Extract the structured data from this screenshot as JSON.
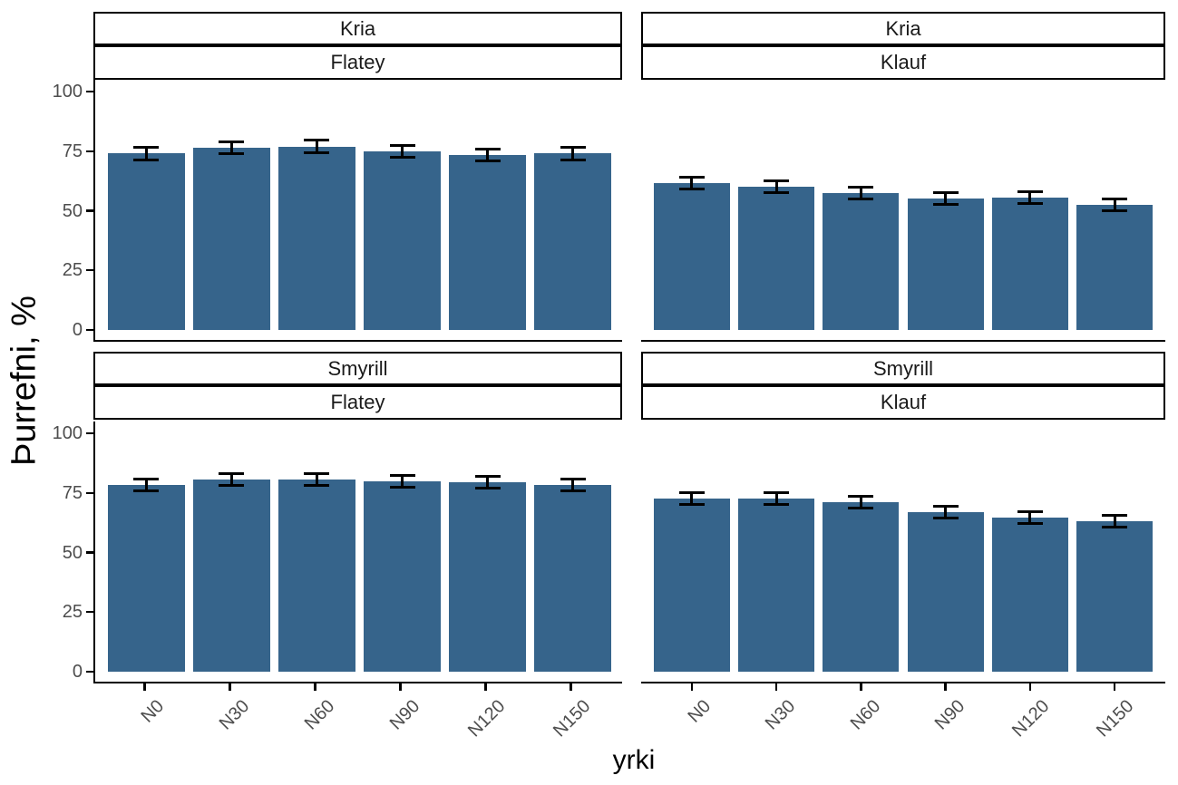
{
  "chart_data": {
    "type": "bar",
    "title": "",
    "xlabel": "yrki",
    "ylabel": "Þurrefni, %",
    "facet_rows": [
      "Kria",
      "Smyrill"
    ],
    "facet_cols": [
      "Flatey",
      "Klauf"
    ],
    "categories": [
      "N0",
      "N30",
      "N60",
      "N90",
      "N120",
      "N150"
    ],
    "ylim": [
      0,
      100
    ],
    "yticks": [
      0,
      25,
      50,
      75,
      100
    ],
    "bar_color": "#36648B",
    "error_bar_color": "#000000",
    "grid": false,
    "legend": "none",
    "panels": [
      {
        "row": "Kria",
        "col": "Flatey",
        "values": [
          74,
          76.5,
          77,
          75,
          73.5,
          74
        ],
        "errors": [
          2.5,
          2.5,
          2.5,
          2.5,
          2.5,
          2.5
        ]
      },
      {
        "row": "Kria",
        "col": "Klauf",
        "values": [
          61.5,
          60,
          57.5,
          55,
          55.5,
          52.5
        ],
        "errors": [
          2.5,
          2.5,
          2.5,
          2.5,
          2.5,
          2.5
        ]
      },
      {
        "row": "Smyrill",
        "col": "Flatey",
        "values": [
          78.5,
          80.5,
          80.5,
          80,
          79.5,
          78.5
        ],
        "errors": [
          2.5,
          2.5,
          2.5,
          2.5,
          2.5,
          2.5
        ]
      },
      {
        "row": "Smyrill",
        "col": "Klauf",
        "values": [
          72.5,
          72.5,
          71,
          67,
          64.5,
          63
        ],
        "errors": [
          2.5,
          2.5,
          2.5,
          2.5,
          2.5,
          2.5
        ]
      }
    ]
  }
}
